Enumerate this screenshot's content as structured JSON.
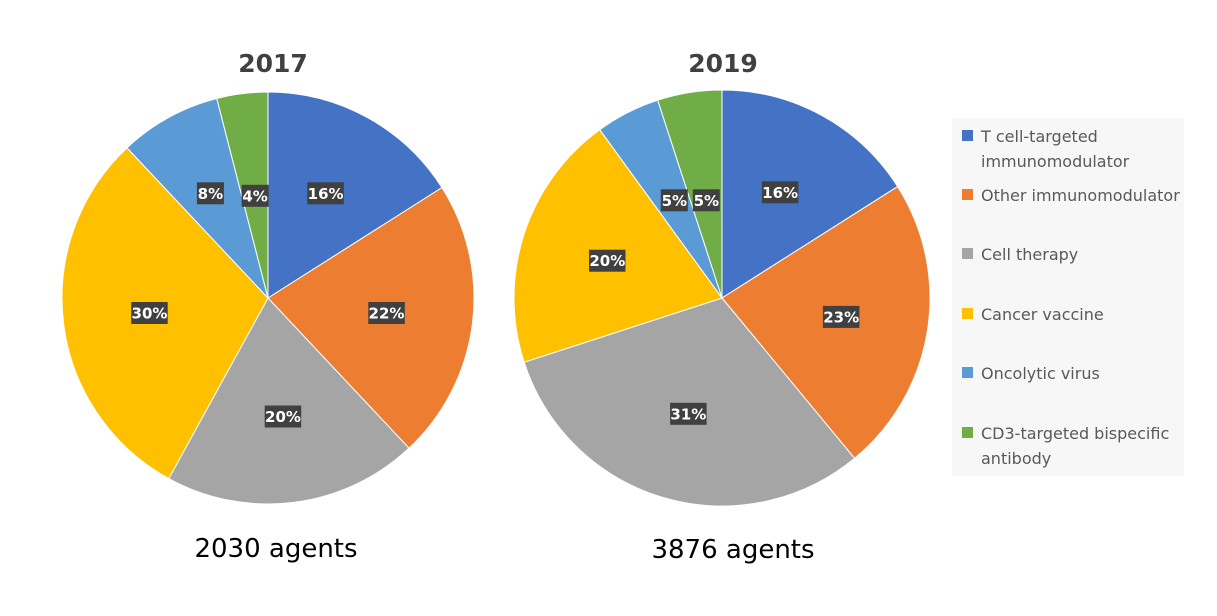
{
  "chart_data": {
    "type": "pie",
    "series_names": [
      "T cell-targeted immunomodulator",
      "Other immunomodulator",
      "Cell therapy",
      "Cancer vaccine",
      "Oncolytic virus",
      "CD3-targeted bispecific antibody"
    ],
    "colors": [
      "#4472c4",
      "#ed7d31",
      "#a5a5a5",
      "#ffc000",
      "#5b9bd5",
      "#70ad47"
    ],
    "legend_position": "right",
    "pies": [
      {
        "title": "2017",
        "caption": "2030 agents",
        "values": [
          16,
          22,
          20,
          30,
          8,
          4
        ],
        "labels": [
          "16%",
          "22%",
          "20%",
          "30%",
          "8%",
          "4%"
        ]
      },
      {
        "title": "2019",
        "caption": "3876 agents",
        "values": [
          16,
          23,
          31,
          20,
          5,
          5
        ],
        "labels": [
          "16%",
          "23%",
          "31%",
          "20%",
          "5%",
          "5%"
        ]
      }
    ]
  }
}
